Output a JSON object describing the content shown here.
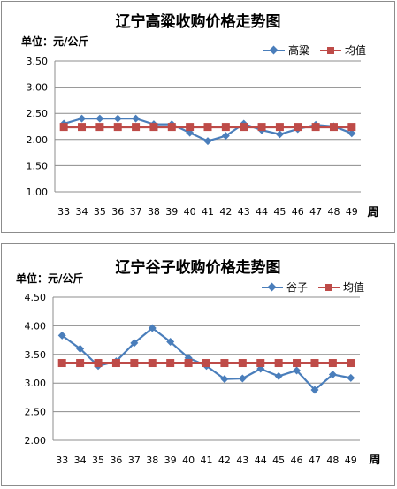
{
  "chart_data": [
    {
      "type": "line",
      "title": "辽宁高粱收购价格走势图",
      "unit_label": "单位：元/公斤",
      "xlabel": "周",
      "categories": [
        "33",
        "34",
        "35",
        "36",
        "37",
        "38",
        "39",
        "40",
        "41",
        "42",
        "43",
        "44",
        "45",
        "46",
        "47",
        "48",
        "49"
      ],
      "ylim": [
        1.0,
        3.5
      ],
      "yticks": [
        "1.00",
        "1.50",
        "2.00",
        "2.50",
        "3.00",
        "3.50"
      ],
      "series": [
        {
          "name": "高粱",
          "color": "#4a7ebb",
          "marker": "diamond",
          "values": [
            2.3,
            2.4,
            2.4,
            2.4,
            2.4,
            2.29,
            2.29,
            2.13,
            1.97,
            2.07,
            2.3,
            2.18,
            2.1,
            2.2,
            2.28,
            2.25,
            2.12
          ]
        },
        {
          "name": "均值",
          "color": "#be4b48",
          "marker": "square",
          "values": [
            2.24,
            2.24,
            2.24,
            2.24,
            2.24,
            2.24,
            2.24,
            2.24,
            2.24,
            2.24,
            2.24,
            2.24,
            2.24,
            2.24,
            2.24,
            2.24,
            2.24
          ]
        }
      ],
      "grid": true,
      "legend": "top-right"
    },
    {
      "type": "line",
      "title": "辽宁谷子收购价格走势图",
      "unit_label": "单位：元/公斤",
      "xlabel": "周",
      "categories": [
        "33",
        "34",
        "35",
        "36",
        "37",
        "38",
        "39",
        "40",
        "41",
        "42",
        "43",
        "44",
        "45",
        "46",
        "47",
        "48",
        "49"
      ],
      "ylim": [
        2.0,
        4.5
      ],
      "yticks": [
        "2.00",
        "2.50",
        "3.00",
        "3.50",
        "4.00",
        "4.50"
      ],
      "series": [
        {
          "name": "谷子",
          "color": "#4a7ebb",
          "marker": "diamond",
          "values": [
            3.83,
            3.6,
            3.3,
            3.38,
            3.7,
            3.96,
            3.72,
            3.44,
            3.3,
            3.07,
            3.08,
            3.25,
            3.12,
            3.22,
            2.88,
            3.15,
            3.09
          ]
        },
        {
          "name": "均值",
          "color": "#be4b48",
          "marker": "square",
          "values": [
            3.35,
            3.35,
            3.35,
            3.35,
            3.35,
            3.35,
            3.35,
            3.35,
            3.35,
            3.35,
            3.35,
            3.35,
            3.35,
            3.35,
            3.35,
            3.35,
            3.35
          ]
        }
      ],
      "grid": true,
      "legend": "top-right"
    }
  ]
}
